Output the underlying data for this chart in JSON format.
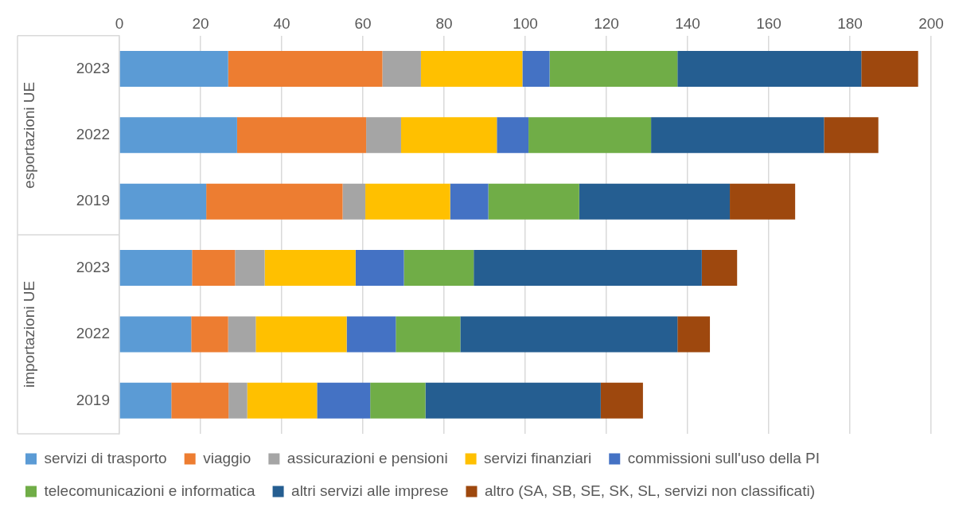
{
  "chart_data": {
    "type": "bar",
    "orientation": "horizontal",
    "stacked": true,
    "categories": [
      "2023",
      "2022",
      "2019",
      "2023",
      "2022",
      "2019"
    ],
    "annotations": [
      "esportazioni UE",
      "importazioni UE"
    ],
    "series": [
      {
        "name": "servizi di trasporto",
        "color": "#5b9bd5",
        "values": [
          26.8,
          29.0,
          21.4,
          17.9,
          17.7,
          12.8
        ]
      },
      {
        "name": "viaggio",
        "color": "#ed7d31",
        "values": [
          38.0,
          31.8,
          33.6,
          10.6,
          9.1,
          14.1
        ]
      },
      {
        "name": "assicurazioni e pensioni",
        "color": "#a5a5a5",
        "values": [
          9.5,
          8.6,
          5.6,
          7.3,
          6.8,
          4.6
        ]
      },
      {
        "name": "servizi finanziari",
        "color": "#ffc000",
        "values": [
          25.0,
          23.6,
          20.9,
          22.4,
          22.4,
          17.2
        ]
      },
      {
        "name": "commissioni sull'uso della PI",
        "color": "#4472c4",
        "values": [
          6.7,
          7.8,
          9.4,
          11.9,
          12.1,
          13.1
        ]
      },
      {
        "name": "telecomunicazioni e informatica",
        "color": "#70ad47",
        "values": [
          31.5,
          30.2,
          22.4,
          17.2,
          15.9,
          13.6
        ]
      },
      {
        "name": "altri servizi alle imprese",
        "color": "#255e91",
        "values": [
          45.3,
          42.6,
          37.1,
          56.2,
          53.5,
          43.2
        ]
      },
      {
        "name": "altro (SA, SB, SE, SK, SL, servizi non classificati)",
        "color": "#9e480e",
        "values": [
          14.0,
          13.4,
          16.1,
          8.7,
          8.0,
          10.4
        ]
      }
    ],
    "xlim": [
      0,
      200
    ],
    "xticks": [
      0,
      20,
      40,
      60,
      80,
      100,
      120,
      140,
      160,
      180,
      200
    ],
    "grid": "x",
    "legend": "bottom"
  }
}
